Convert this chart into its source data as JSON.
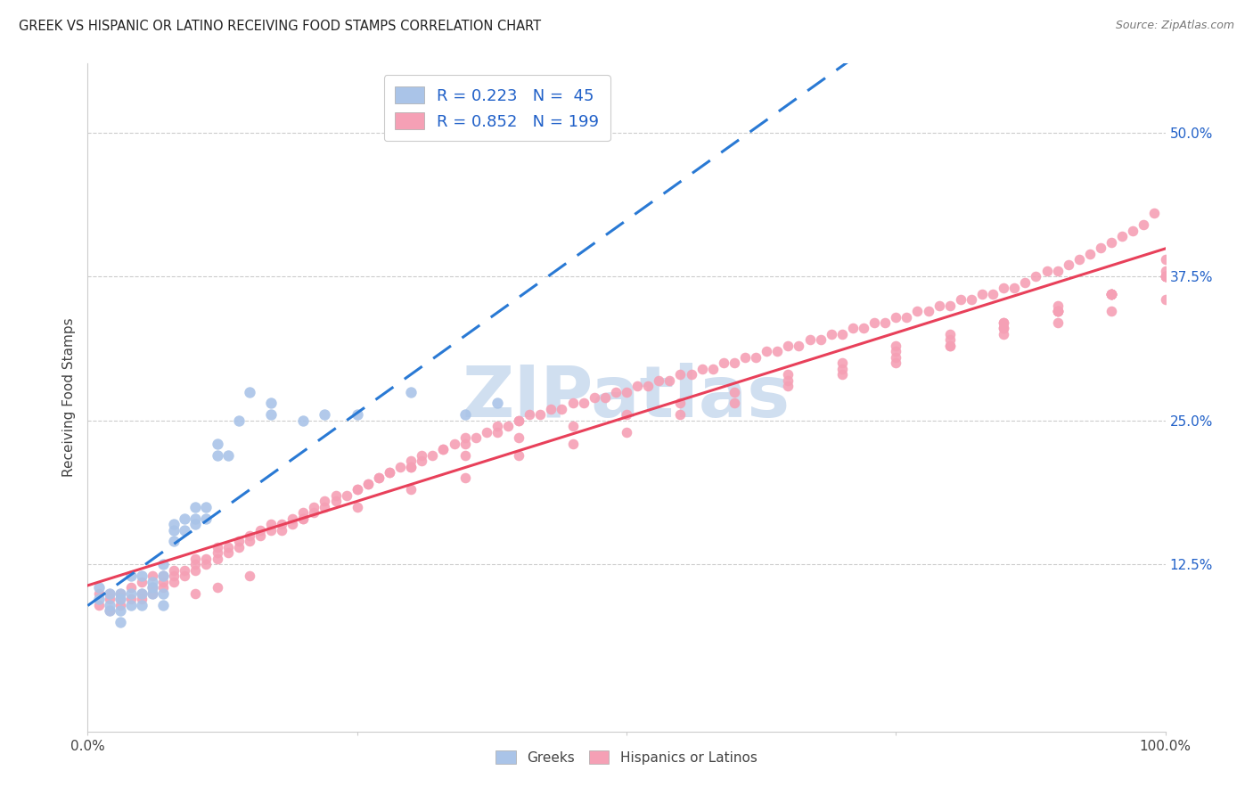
{
  "title": "GREEK VS HISPANIC OR LATINO RECEIVING FOOD STAMPS CORRELATION CHART",
  "source": "Source: ZipAtlas.com",
  "ylabel": "Receiving Food Stamps",
  "ytick_labels": [
    "12.5%",
    "25.0%",
    "37.5%",
    "50.0%"
  ],
  "ytick_values": [
    0.125,
    0.25,
    0.375,
    0.5
  ],
  "xlim": [
    0.0,
    1.0
  ],
  "ylim": [
    -0.02,
    0.56
  ],
  "greek_color": "#aac4e8",
  "hispanic_color": "#f5a0b5",
  "greek_line_color": "#2979d4",
  "hispanic_line_color": "#e8405a",
  "dashed_line_color": "#90b8e0",
  "greek_R": 0.223,
  "greek_N": 45,
  "hispanic_R": 0.852,
  "hispanic_N": 199,
  "legend_text_color": "#2060c8",
  "watermark_text": "ZIPatlas",
  "watermark_color": "#d0dff0",
  "greek_scatter_x": [
    0.01,
    0.01,
    0.02,
    0.02,
    0.02,
    0.03,
    0.03,
    0.03,
    0.03,
    0.04,
    0.04,
    0.04,
    0.05,
    0.05,
    0.05,
    0.06,
    0.06,
    0.06,
    0.07,
    0.07,
    0.07,
    0.07,
    0.08,
    0.08,
    0.08,
    0.09,
    0.09,
    0.1,
    0.1,
    0.1,
    0.11,
    0.11,
    0.12,
    0.12,
    0.13,
    0.14,
    0.15,
    0.17,
    0.17,
    0.2,
    0.22,
    0.25,
    0.3,
    0.35,
    0.38
  ],
  "greek_scatter_y": [
    0.105,
    0.095,
    0.09,
    0.085,
    0.1,
    0.1,
    0.095,
    0.085,
    0.075,
    0.09,
    0.1,
    0.115,
    0.09,
    0.1,
    0.115,
    0.1,
    0.11,
    0.105,
    0.09,
    0.1,
    0.115,
    0.125,
    0.155,
    0.16,
    0.145,
    0.155,
    0.165,
    0.175,
    0.16,
    0.165,
    0.165,
    0.175,
    0.22,
    0.23,
    0.22,
    0.25,
    0.275,
    0.265,
    0.255,
    0.25,
    0.255,
    0.255,
    0.275,
    0.255,
    0.265
  ],
  "hispanic_scatter_x": [
    0.01,
    0.01,
    0.02,
    0.02,
    0.02,
    0.03,
    0.03,
    0.03,
    0.04,
    0.04,
    0.05,
    0.05,
    0.05,
    0.06,
    0.06,
    0.06,
    0.07,
    0.07,
    0.07,
    0.08,
    0.08,
    0.08,
    0.09,
    0.09,
    0.1,
    0.1,
    0.1,
    0.11,
    0.11,
    0.12,
    0.12,
    0.12,
    0.13,
    0.13,
    0.14,
    0.14,
    0.15,
    0.15,
    0.16,
    0.16,
    0.17,
    0.17,
    0.18,
    0.18,
    0.19,
    0.19,
    0.2,
    0.2,
    0.21,
    0.21,
    0.22,
    0.22,
    0.23,
    0.23,
    0.24,
    0.25,
    0.25,
    0.26,
    0.26,
    0.27,
    0.27,
    0.28,
    0.28,
    0.29,
    0.3,
    0.3,
    0.31,
    0.31,
    0.32,
    0.33,
    0.33,
    0.34,
    0.35,
    0.35,
    0.36,
    0.37,
    0.38,
    0.38,
    0.39,
    0.4,
    0.4,
    0.41,
    0.42,
    0.43,
    0.44,
    0.45,
    0.46,
    0.47,
    0.48,
    0.49,
    0.5,
    0.51,
    0.52,
    0.53,
    0.54,
    0.55,
    0.56,
    0.57,
    0.58,
    0.59,
    0.6,
    0.61,
    0.62,
    0.63,
    0.64,
    0.65,
    0.66,
    0.67,
    0.68,
    0.69,
    0.7,
    0.71,
    0.72,
    0.73,
    0.74,
    0.75,
    0.76,
    0.77,
    0.78,
    0.79,
    0.8,
    0.81,
    0.82,
    0.83,
    0.84,
    0.85,
    0.86,
    0.87,
    0.88,
    0.89,
    0.9,
    0.91,
    0.92,
    0.93,
    0.94,
    0.95,
    0.96,
    0.97,
    0.98,
    0.99,
    0.3,
    0.35,
    0.4,
    0.45,
    0.5,
    0.55,
    0.6,
    0.65,
    0.7,
    0.75,
    0.8,
    0.85,
    0.9,
    0.95,
    1.0,
    0.5,
    0.55,
    0.6,
    0.65,
    0.7,
    0.75,
    0.8,
    0.85,
    0.9,
    0.95,
    1.0,
    0.65,
    0.7,
    0.75,
    0.8,
    0.85,
    0.9,
    0.95,
    1.0,
    0.75,
    0.8,
    0.85,
    0.9,
    0.95,
    1.0,
    0.85,
    0.9,
    0.95,
    1.0,
    0.9,
    0.95,
    1.0,
    0.95,
    1.0,
    1.0,
    0.2,
    0.25,
    0.3,
    0.35,
    0.4,
    0.45,
    0.1,
    0.15,
    0.12
  ],
  "hispanic_scatter_y": [
    0.09,
    0.1,
    0.085,
    0.095,
    0.1,
    0.09,
    0.1,
    0.095,
    0.095,
    0.105,
    0.095,
    0.1,
    0.11,
    0.1,
    0.105,
    0.115,
    0.105,
    0.11,
    0.115,
    0.11,
    0.115,
    0.12,
    0.115,
    0.12,
    0.12,
    0.125,
    0.13,
    0.125,
    0.13,
    0.13,
    0.135,
    0.14,
    0.135,
    0.14,
    0.14,
    0.145,
    0.145,
    0.15,
    0.15,
    0.155,
    0.155,
    0.16,
    0.155,
    0.16,
    0.16,
    0.165,
    0.165,
    0.17,
    0.17,
    0.175,
    0.175,
    0.18,
    0.18,
    0.185,
    0.185,
    0.19,
    0.19,
    0.195,
    0.195,
    0.2,
    0.2,
    0.205,
    0.205,
    0.21,
    0.21,
    0.215,
    0.215,
    0.22,
    0.22,
    0.225,
    0.225,
    0.23,
    0.23,
    0.235,
    0.235,
    0.24,
    0.24,
    0.245,
    0.245,
    0.25,
    0.25,
    0.255,
    0.255,
    0.26,
    0.26,
    0.265,
    0.265,
    0.27,
    0.27,
    0.275,
    0.275,
    0.28,
    0.28,
    0.285,
    0.285,
    0.29,
    0.29,
    0.295,
    0.295,
    0.3,
    0.3,
    0.305,
    0.305,
    0.31,
    0.31,
    0.315,
    0.315,
    0.32,
    0.32,
    0.325,
    0.325,
    0.33,
    0.33,
    0.335,
    0.335,
    0.34,
    0.34,
    0.345,
    0.345,
    0.35,
    0.35,
    0.355,
    0.355,
    0.36,
    0.36,
    0.365,
    0.365,
    0.37,
    0.375,
    0.38,
    0.38,
    0.385,
    0.39,
    0.395,
    0.4,
    0.405,
    0.41,
    0.415,
    0.42,
    0.43,
    0.21,
    0.22,
    0.235,
    0.245,
    0.255,
    0.265,
    0.275,
    0.285,
    0.295,
    0.305,
    0.315,
    0.325,
    0.335,
    0.345,
    0.355,
    0.24,
    0.255,
    0.265,
    0.28,
    0.29,
    0.3,
    0.315,
    0.33,
    0.345,
    0.36,
    0.375,
    0.29,
    0.3,
    0.31,
    0.32,
    0.33,
    0.345,
    0.36,
    0.375,
    0.315,
    0.325,
    0.335,
    0.345,
    0.36,
    0.375,
    0.335,
    0.345,
    0.36,
    0.38,
    0.35,
    0.36,
    0.375,
    0.36,
    0.375,
    0.39,
    0.165,
    0.175,
    0.19,
    0.2,
    0.22,
    0.23,
    0.1,
    0.115,
    0.105
  ]
}
